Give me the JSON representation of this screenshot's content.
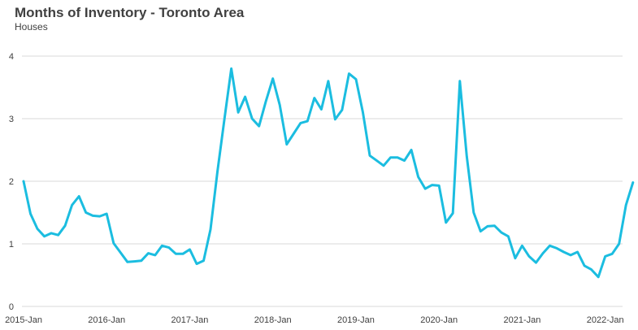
{
  "chart_data": {
    "type": "line",
    "title": "Months of Inventory - Toronto Area",
    "subtitle": "Houses",
    "xlabel": "",
    "ylabel": "",
    "ylim": [
      0,
      4
    ],
    "yticks": [
      "0",
      "1",
      "2",
      "3",
      "4"
    ],
    "xticks": [
      "2015-Jan",
      "2016-Jan",
      "2017-Jan",
      "2018-Jan",
      "2019-Jan",
      "2020-Jan",
      "2021-Jan",
      "2022-Jan"
    ],
    "grid": true,
    "color": "#1bbde0",
    "series": [
      {
        "name": "Houses",
        "values": [
          2.0,
          1.48,
          1.24,
          1.12,
          1.17,
          1.14,
          1.29,
          1.62,
          1.76,
          1.5,
          1.45,
          1.44,
          1.48,
          1.01,
          0.86,
          0.71,
          0.72,
          0.73,
          0.85,
          0.82,
          0.97,
          0.94,
          0.84,
          0.84,
          0.91,
          0.68,
          0.73,
          1.23,
          2.16,
          2.99,
          3.8,
          3.1,
          3.35,
          3.0,
          2.88,
          3.28,
          3.64,
          3.22,
          2.59,
          2.76,
          2.93,
          2.96,
          3.33,
          3.15,
          3.6,
          2.99,
          3.14,
          3.72,
          3.63,
          3.1,
          2.41,
          2.33,
          2.25,
          2.38,
          2.38,
          2.33,
          2.5,
          2.07,
          1.88,
          1.94,
          1.93,
          1.34,
          1.49,
          3.6,
          2.4,
          1.5,
          1.2,
          1.28,
          1.29,
          1.18,
          1.12,
          0.77,
          0.97,
          0.8,
          0.7,
          0.85,
          0.97,
          0.93,
          0.87,
          0.82,
          0.87,
          0.65,
          0.59,
          0.47,
          0.8,
          0.84,
          1.0,
          1.62,
          1.98
        ]
      }
    ]
  }
}
